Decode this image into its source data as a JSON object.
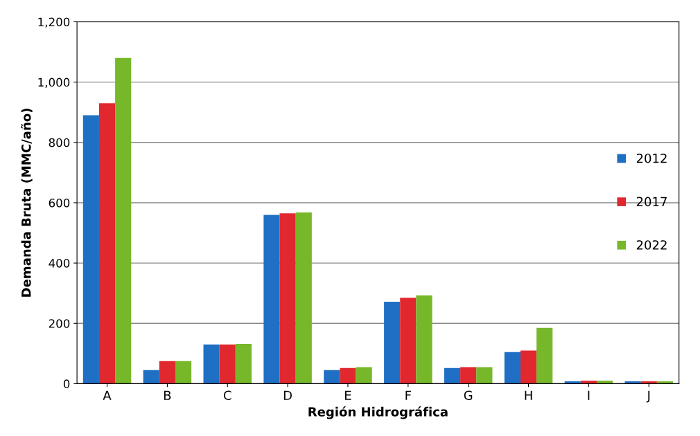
{
  "chart_data": {
    "type": "bar",
    "xlabel": "Región Hidrográfica",
    "ylabel": "Demanda Bruta (MMC/año)",
    "categories": [
      "A",
      "B",
      "C",
      "D",
      "E",
      "F",
      "G",
      "H",
      "I",
      "J"
    ],
    "series": [
      {
        "name": "2012",
        "color": "#1f6fc5",
        "values": [
          890,
          45,
          130,
          560,
          45,
          272,
          52,
          105,
          8,
          8
        ]
      },
      {
        "name": "2017",
        "color": "#e0282e",
        "values": [
          930,
          75,
          130,
          565,
          52,
          285,
          55,
          110,
          10,
          8
        ]
      },
      {
        "name": "2022",
        "color": "#76b82a",
        "values": [
          1080,
          75,
          132,
          568,
          55,
          293,
          55,
          185,
          10,
          8
        ]
      }
    ],
    "ylim": [
      0,
      1200
    ],
    "yticks": [
      0,
      200,
      400,
      600,
      800,
      {
        "value": 1000,
        "label": "1,000"
      },
      {
        "value": 1200,
        "label": "1,200"
      }
    ],
    "grid": "y",
    "legend": "right"
  }
}
